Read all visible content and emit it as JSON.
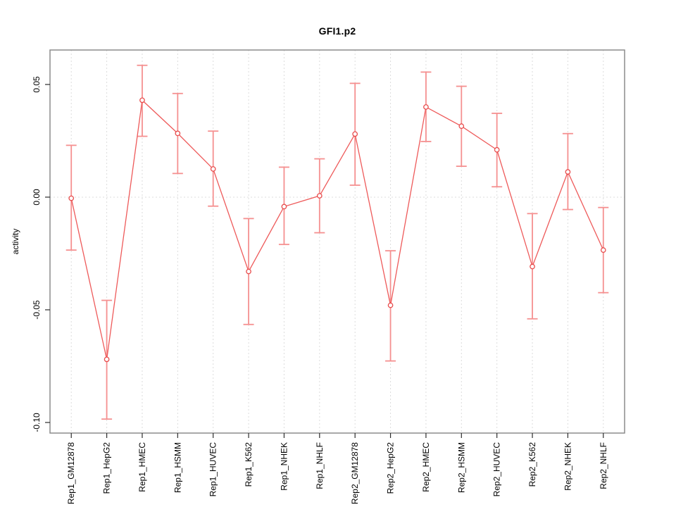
{
  "window": {
    "background": "#ffffff"
  },
  "chart_data": {
    "type": "line",
    "title": "GFI1.p2",
    "ylabel": "activity",
    "xlabel": "",
    "categories": [
      "Rep1_GM12878",
      "Rep1_HepG2",
      "Rep1_HMEC",
      "Rep1_HSMM",
      "Rep1_HUVEC",
      "Rep1_K562",
      "Rep1_NHEK",
      "Rep1_NHLF",
      "Rep2_GM12878",
      "Rep2_HepG2",
      "Rep2_HMEC",
      "Rep2_HSMM",
      "Rep2_HUVEC",
      "Rep2_K562",
      "Rep2_NHEK",
      "Rep2_NHLF"
    ],
    "series": [
      {
        "name": "activity",
        "values": [
          -0.0005,
          -0.072,
          0.043,
          0.0283,
          0.0125,
          -0.033,
          -0.0042,
          0.0006,
          0.028,
          -0.048,
          0.04,
          0.0315,
          0.021,
          -0.0308,
          0.0112,
          -0.0235
        ],
        "error_low": [
          -0.0235,
          -0.0985,
          0.027,
          0.0105,
          -0.004,
          -0.0565,
          -0.021,
          -0.0158,
          0.0053,
          -0.0727,
          0.0247,
          0.0137,
          0.0046,
          -0.054,
          -0.0055,
          -0.0424
        ],
        "error_high": [
          0.023,
          -0.0458,
          0.0585,
          0.046,
          0.0293,
          -0.0095,
          0.0133,
          0.017,
          0.0505,
          -0.0238,
          0.0555,
          0.0492,
          0.0372,
          -0.0073,
          0.0282,
          -0.0046
        ]
      }
    ],
    "yticks": [
      0.05,
      0.0,
      -0.05,
      -0.1
    ],
    "ytick_labels": [
      "0.05",
      "0.00",
      "-0.05",
      "-0.10"
    ],
    "ylim": [
      -0.1047,
      0.0653
    ],
    "grid": "vertical dotted line at each category; dotted horizontal line at zero",
    "legend_position": "none",
    "colors": {
      "line": "#ee5a5a",
      "error_bar": "#f59090",
      "point_stroke": "#e84c4c",
      "point_fill": "#ffffff",
      "gridline": "#dcdcdc",
      "zero_line": "#dcdcdc",
      "box": "#8c8c8c",
      "tick": "#2b2b2b",
      "text": "#000000"
    }
  }
}
